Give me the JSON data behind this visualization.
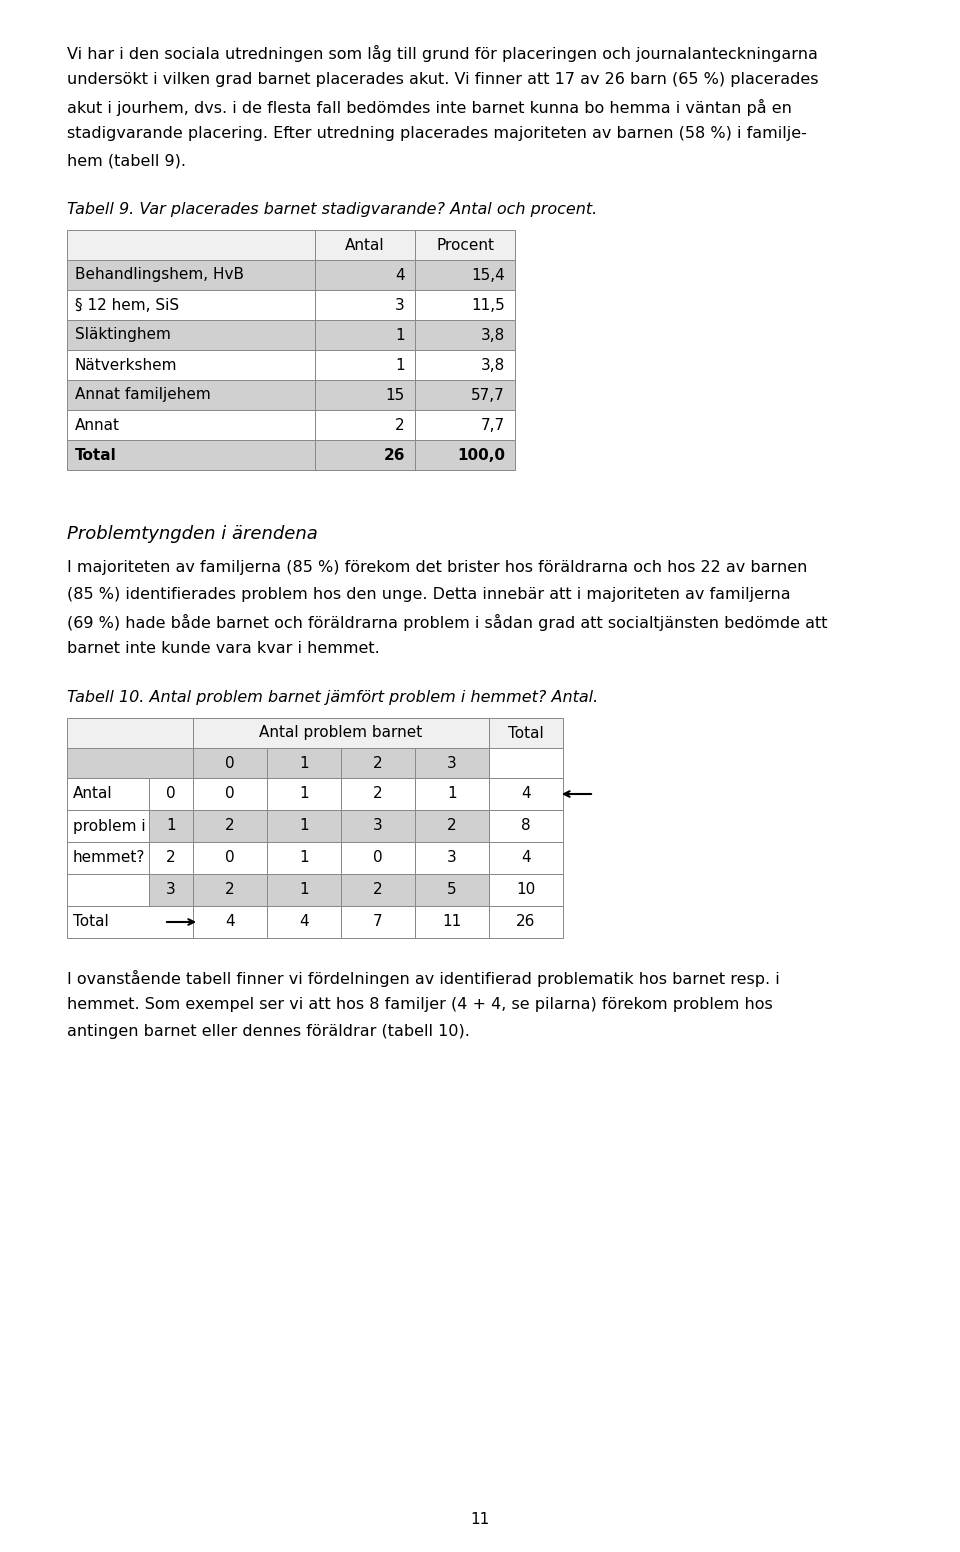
{
  "page_bg": "#ffffff",
  "body_text_size": 11.5,
  "heading_text_size": 13,
  "para1_lines": [
    "Vi har i den sociala utredningen som låg till grund för placeringen och journalanteckningarna",
    "undersökt i vilken grad barnet placerades akut. Vi finner att 17 av 26 barn (65 %) placerades",
    "akut i jourhem, dvs. i de flesta fall bedömdes inte barnet kunna bo hemma i väntan på en",
    "stadigvarande placering. Efter utredning placerades majoriteten av barnen (58 %) i familje-",
    "hem (tabell 9)."
  ],
  "tabell9_title": "Tabell 9. Var placerades barnet stadigvarande? Antal och procent.",
  "tabell9_headers": [
    "",
    "Antal",
    "Procent"
  ],
  "tabell9_rows": [
    [
      "Behandlingshem, HvB",
      "4",
      "15,4"
    ],
    [
      "§ 12 hem, SiS",
      "3",
      "11,5"
    ],
    [
      "Släktinghem",
      "1",
      "3,8"
    ],
    [
      "Nätverkshem",
      "1",
      "3,8"
    ],
    [
      "Annat familjehem",
      "15",
      "57,7"
    ],
    [
      "Annat",
      "2",
      "7,7"
    ],
    [
      "Total",
      "26",
      "100,0"
    ]
  ],
  "tabell9_shaded_rows": [
    0,
    2,
    4,
    6
  ],
  "heading2": "Problemtyngden i ärendena",
  "para2_lines": [
    "I majoriteten av familjerna (85 %) förekom det brister hos föräldrarna och hos 22 av barnen",
    "(85 %) identifierades problem hos den unge. Detta innebär att i majoriteten av familjerna",
    "(69 %) hade både barnet och föräldrarna problem i sådan grad att socialtjänsten bedömde att",
    "barnet inte kunde vara kvar i hemmet."
  ],
  "tabell10_title": "Tabell 10. Antal problem barnet jämfört problem i hemmet? Antal.",
  "tabell10_col_header1": "Antal problem barnet",
  "tabell10_col_header2": "Total",
  "tabell10_sub_headers": [
    "0",
    "1",
    "2",
    "3"
  ],
  "tabell10_row_label_group": [
    "Antal",
    "problem i",
    "hemmet?"
  ],
  "tabell10_rows": [
    [
      "0",
      "0",
      "1",
      "2",
      "1",
      "4"
    ],
    [
      "1",
      "2",
      "1",
      "3",
      "2",
      "8"
    ],
    [
      "2",
      "0",
      "1",
      "0",
      "3",
      "4"
    ],
    [
      "3",
      "2",
      "1",
      "2",
      "5",
      "10"
    ]
  ],
  "tabell10_total_row": [
    "4",
    "4",
    "7",
    "11",
    "26"
  ],
  "tabell10_shaded_rows": [
    1,
    3
  ],
  "para3_lines": [
    "I ovanstående tabell finner vi fördelningen av identifierad problematik hos barnet resp. i",
    "hemmet. Som exempel ser vi att hos 8 familjer (4 + 4, se pilarna) förekom problem hos",
    "antingen barnet eller dennes föräldrar (tabell 10)."
  ],
  "page_number": "11",
  "shade_color": "#d0d0d0",
  "white_color": "#ffffff",
  "header_color": "#f0f0f0",
  "border_color": "#888888"
}
